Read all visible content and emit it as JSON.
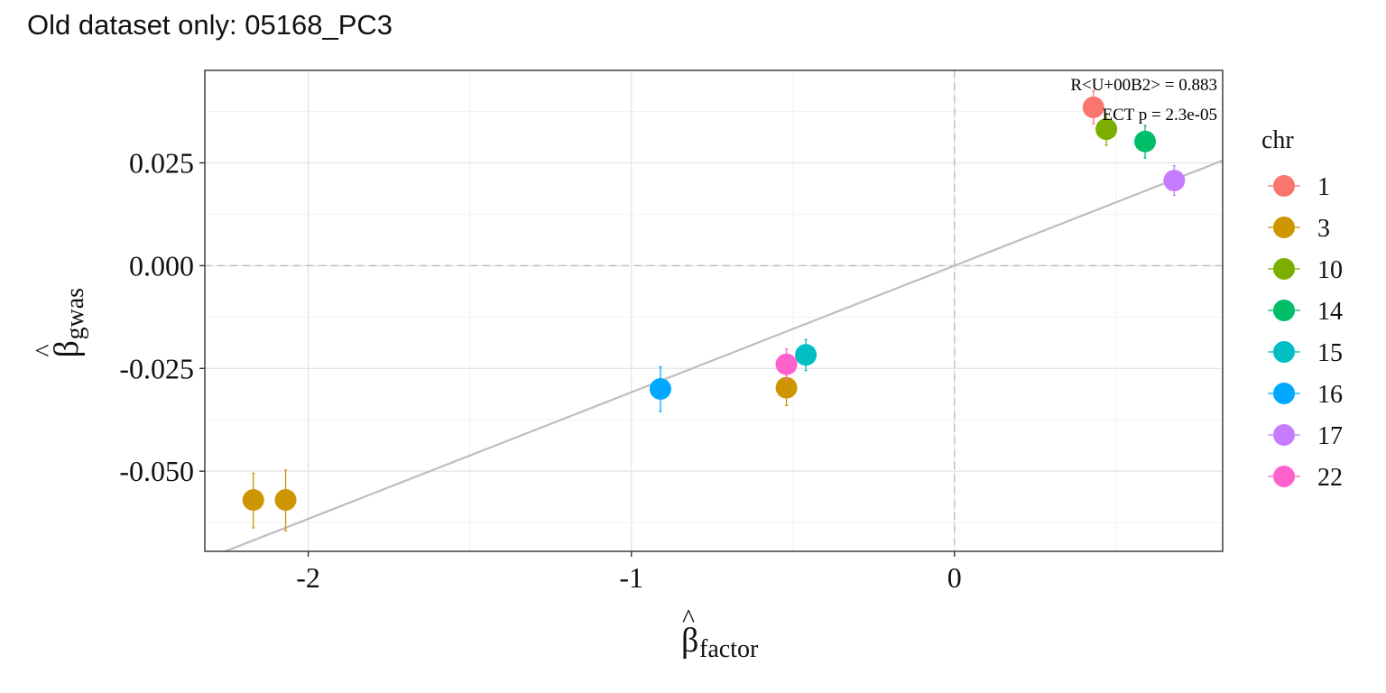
{
  "chart_data": {
    "type": "scatter",
    "title": "Old dataset only: 05168_PC3",
    "xlabel": {
      "base": "β",
      "hat": "^",
      "sub": "factor"
    },
    "ylabel": {
      "base": "β",
      "hat": "^",
      "sub": "gwas"
    },
    "xlim": [
      -2.32,
      0.83
    ],
    "ylim": [
      -0.0695,
      0.0475
    ],
    "x_ticks": [
      {
        "value": -2,
        "label": "-2"
      },
      {
        "value": -1,
        "label": "-1"
      },
      {
        "value": 0,
        "label": "0"
      }
    ],
    "y_ticks": [
      {
        "value": 0.025,
        "label": "0.025"
      },
      {
        "value": 0.0,
        "label": "0.000"
      },
      {
        "value": -0.025,
        "label": "-0.025"
      },
      {
        "value": -0.05,
        "label": "-0.050"
      }
    ],
    "grid": true,
    "reference_lines": {
      "x": 0,
      "y": 0,
      "style": "dashed"
    },
    "fit_line": {
      "slope": 0.0308,
      "intercept": 0.0
    },
    "annotations": [
      "R<U+00B2> = 0.883",
      "ECT p = 2.3e-05"
    ],
    "legend": {
      "title": "chr",
      "placement": "right",
      "entries": [
        {
          "label": "1",
          "color": "#F8766D"
        },
        {
          "label": "3",
          "color": "#CD9600"
        },
        {
          "label": "10",
          "color": "#7CAE00"
        },
        {
          "label": "14",
          "color": "#00BE67"
        },
        {
          "label": "15",
          "color": "#00BFC4"
        },
        {
          "label": "16",
          "color": "#00A9FF"
        },
        {
          "label": "17",
          "color": "#C77CFF"
        },
        {
          "label": "22",
          "color": "#FF61CC"
        }
      ]
    },
    "points": [
      {
        "chr": "1",
        "x": 0.43,
        "y": 0.0385,
        "ymin": 0.0345,
        "ymax": 0.0425
      },
      {
        "chr": "3",
        "x": -2.17,
        "y": -0.057,
        "ymin": -0.0638,
        "ymax": -0.0505
      },
      {
        "chr": "3",
        "x": -2.07,
        "y": -0.057,
        "ymin": -0.0645,
        "ymax": -0.0497
      },
      {
        "chr": "3",
        "x": -0.52,
        "y": -0.0297,
        "ymin": -0.034,
        "ymax": -0.0254
      },
      {
        "chr": "10",
        "x": 0.47,
        "y": 0.0332,
        "ymin": 0.0293,
        "ymax": 0.037
      },
      {
        "chr": "14",
        "x": 0.59,
        "y": 0.0302,
        "ymin": 0.0262,
        "ymax": 0.0341
      },
      {
        "chr": "15",
        "x": -0.46,
        "y": -0.0217,
        "ymin": -0.0255,
        "ymax": -0.018
      },
      {
        "chr": "16",
        "x": -0.91,
        "y": -0.03,
        "ymin": -0.0355,
        "ymax": -0.0246
      },
      {
        "chr": "17",
        "x": 0.68,
        "y": 0.0207,
        "ymin": 0.0171,
        "ymax": 0.0243
      },
      {
        "chr": "22",
        "x": -0.52,
        "y": -0.024,
        "ymin": -0.0278,
        "ymax": -0.0203
      }
    ]
  }
}
